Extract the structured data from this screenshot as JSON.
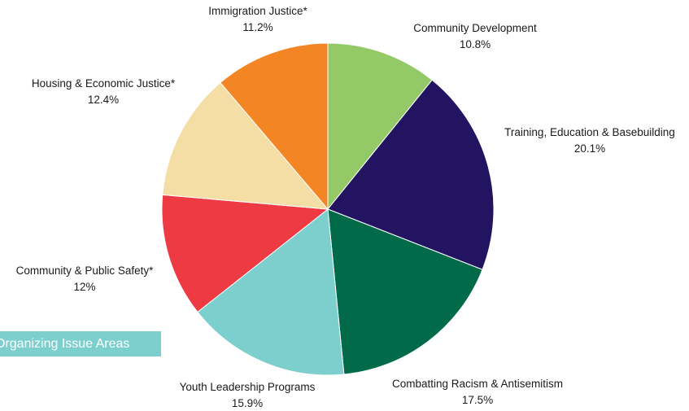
{
  "badge_text": "Organizing Issue Areas",
  "chart_data": {
    "type": "pie",
    "title": "",
    "start_angle_deg": 0,
    "direction": "clockwise",
    "slices": [
      {
        "label": "Community Development",
        "value_text": "10.8%",
        "value": 10.8,
        "color": "#93c966"
      },
      {
        "label": "Training, Education & Basebuilding",
        "value_text": "20.1%",
        "value": 20.1,
        "color": "#221461"
      },
      {
        "label": "Combatting Racism & Antisemitism",
        "value_text": "17.5%",
        "value": 17.5,
        "color": "#006a49"
      },
      {
        "label": "Youth Leadership Programs",
        "value_text": "15.9%",
        "value": 15.9,
        "color": "#7ccfcd"
      },
      {
        "label": "Community & Public Safety*",
        "value_text": "12%",
        "value": 12.0,
        "color": "#ee3a43"
      },
      {
        "label": "Housing & Economic Justice*",
        "value_text": "12.4%",
        "value": 12.4,
        "color": "#f4dea5"
      },
      {
        "label": "Immigration Justice*",
        "value_text": "11.2%",
        "value": 11.2,
        "color": "#f48524"
      }
    ]
  }
}
